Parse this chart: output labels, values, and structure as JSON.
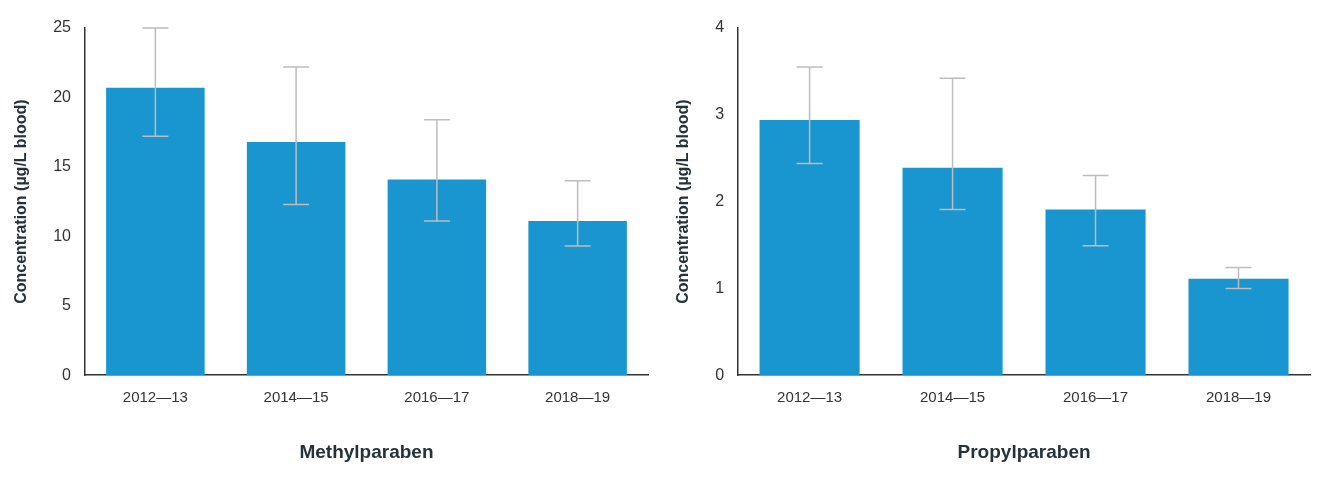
{
  "chart_data": [
    {
      "type": "bar",
      "xlabel": "Methylparaben",
      "ylabel": "Concentration (µg/L blood)",
      "categories": [
        "2012—13",
        "2014—15",
        "2016—17",
        "2018—19"
      ],
      "values": [
        20.7,
        16.8,
        14.1,
        11.1
      ],
      "color": "#1995cf",
      "errors": [
        [
          17.2,
          25
        ],
        [
          12.3,
          22.2
        ],
        [
          11.1,
          18.4
        ],
        [
          9.3,
          14
        ]
      ],
      "ylim": [
        0,
        25
      ],
      "yticks": [
        0,
        5,
        10,
        15,
        20,
        25
      ],
      "grid": false,
      "legend": false
    },
    {
      "type": "bar",
      "xlabel": "Propylparaben",
      "ylabel": "Concentration (µg/L blood)",
      "categories": [
        "2012—13",
        "2014—15",
        "2016—17",
        "2018—19"
      ],
      "values": [
        2.94,
        2.39,
        1.91,
        1.11
      ],
      "color": "#1995cf",
      "errors": [
        [
          2.44,
          3.55
        ],
        [
          1.91,
          3.42
        ],
        [
          1.49,
          2.3
        ],
        [
          1,
          1.24
        ]
      ],
      "ylim": [
        0,
        4
      ],
      "yticks": [
        0,
        1,
        2,
        3,
        4
      ],
      "grid": false,
      "legend": false
    }
  ]
}
